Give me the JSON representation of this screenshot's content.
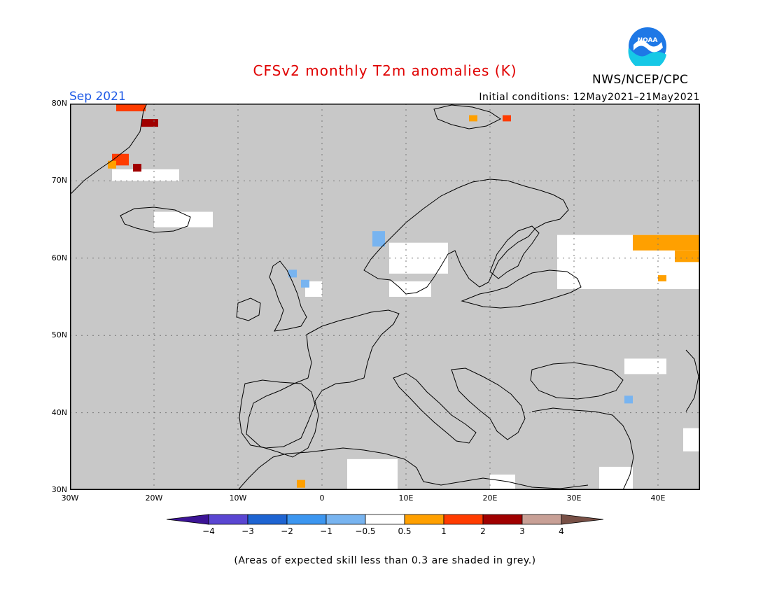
{
  "header": {
    "title": "CFSv2 monthly T2m anomalies (K)",
    "organization": "NWS/NCEP/CPC",
    "logo_text": "NOAA",
    "period": "Sep 2021",
    "initial_conditions": "Initial conditions: 12May2021–21May2021"
  },
  "colors": {
    "title": "#e00000",
    "period": "#1e5ae6",
    "skill_grey": "#c8c8c8",
    "neutral": "#ffffff"
  },
  "map": {
    "projection": "lat-lon",
    "lon_range": [
      -30,
      45
    ],
    "lat_range": [
      30,
      80
    ],
    "lat_ticks": [
      {
        "value": 80,
        "label": "80N"
      },
      {
        "value": 70,
        "label": "70N"
      },
      {
        "value": 60,
        "label": "60N"
      },
      {
        "value": 50,
        "label": "50N"
      },
      {
        "value": 40,
        "label": "40N"
      },
      {
        "value": 30,
        "label": "30N"
      }
    ],
    "lon_ticks": [
      {
        "value": -30,
        "label": "30W"
      },
      {
        "value": -20,
        "label": "20W"
      },
      {
        "value": -10,
        "label": "10W"
      },
      {
        "value": 0,
        "label": "0"
      },
      {
        "value": 10,
        "label": "10E"
      },
      {
        "value": 20,
        "label": "20E"
      },
      {
        "value": 30,
        "label": "30E"
      },
      {
        "value": 40,
        "label": "40E"
      }
    ]
  },
  "colorbar": {
    "levels": [
      {
        "value": -4,
        "label": "−4"
      },
      {
        "value": -3,
        "label": "−3"
      },
      {
        "value": -2,
        "label": "−2"
      },
      {
        "value": -1,
        "label": "−1"
      },
      {
        "value": -0.5,
        "label": "−0.5"
      },
      {
        "value": 0.5,
        "label": "0.5"
      },
      {
        "value": 1,
        "label": "1"
      },
      {
        "value": 2,
        "label": "2"
      },
      {
        "value": 3,
        "label": "3"
      },
      {
        "value": 4,
        "label": "4"
      }
    ],
    "colors": [
      "#3c1496",
      "#5a46d2",
      "#1e64d2",
      "#3c96f0",
      "#78b4f0",
      "#ffffff",
      "#ffa000",
      "#ff3c00",
      "#a00000",
      "#c8a096",
      "#785046"
    ]
  },
  "footnote": "(Areas of expected skill less than 0.3 are shaded in grey.)",
  "anomaly_cells": [
    {
      "lon": -24.5,
      "lat": 79.0,
      "dlon": 3.5,
      "dlat": 2.5,
      "color": "#ff3c00"
    },
    {
      "lon": -21.5,
      "lat": 77.0,
      "dlon": 2.0,
      "dlat": 1.0,
      "color": "#a00000"
    },
    {
      "lon": -25.0,
      "lat": 72.0,
      "dlon": 2.0,
      "dlat": 1.5,
      "color": "#ff3c00"
    },
    {
      "lon": -25.5,
      "lat": 71.6,
      "dlon": 1.0,
      "dlat": 1.0,
      "color": "#ffa000"
    },
    {
      "lon": -22.5,
      "lat": 71.2,
      "dlon": 1.0,
      "dlat": 1.0,
      "color": "#a00000"
    },
    {
      "lon": 17.5,
      "lat": 77.7,
      "dlon": 1.0,
      "dlat": 0.8,
      "color": "#ffa000"
    },
    {
      "lon": 21.5,
      "lat": 77.7,
      "dlon": 1.0,
      "dlat": 0.8,
      "color": "#ff3c00"
    },
    {
      "lon": 37.0,
      "lat": 61.0,
      "dlon": 8.0,
      "dlat": 2.0,
      "color": "#ffa000"
    },
    {
      "lon": 42.0,
      "lat": 59.5,
      "dlon": 3.0,
      "dlat": 1.5,
      "color": "#ffa000"
    },
    {
      "lon": 40.0,
      "lat": 57.0,
      "dlon": 1.0,
      "dlat": 0.8,
      "color": "#ffa000"
    },
    {
      "lon": -3.0,
      "lat": 30.3,
      "dlon": 1.0,
      "dlat": 1.0,
      "color": "#ffa000"
    },
    {
      "lon": 36.0,
      "lat": 41.2,
      "dlon": 1.0,
      "dlat": 1.0,
      "color": "#78b4f0"
    },
    {
      "lon": -4.0,
      "lat": 57.5,
      "dlon": 1.0,
      "dlat": 1.0,
      "color": "#78b4f0"
    },
    {
      "lon": -2.5,
      "lat": 56.2,
      "dlon": 1.0,
      "dlat": 1.0,
      "color": "#78b4f0"
    },
    {
      "lon": 6.0,
      "lat": 61.5,
      "dlon": 1.5,
      "dlat": 2.0,
      "color": "#78b4f0"
    }
  ],
  "neutral_cells": [
    {
      "lon": -25,
      "lat": 70,
      "dlon": 8,
      "dlat": 1.5
    },
    {
      "lon": -20,
      "lat": 64,
      "dlon": 7,
      "dlat": 2
    },
    {
      "lon": 28,
      "lat": 56,
      "dlon": 17,
      "dlat": 7
    },
    {
      "lon": 8,
      "lat": 58,
      "dlon": 7,
      "dlat": 4
    },
    {
      "lon": 3,
      "lat": 30,
      "dlon": 6,
      "dlat": 4
    },
    {
      "lon": 20,
      "lat": 30,
      "dlon": 3,
      "dlat": 2
    },
    {
      "lon": 33,
      "lat": 30,
      "dlon": 4,
      "dlat": 3
    },
    {
      "lon": 43,
      "lat": 35,
      "dlon": 2,
      "dlat": 3
    },
    {
      "lon": 36,
      "lat": 45,
      "dlon": 5,
      "dlat": 2
    },
    {
      "lon": -2,
      "lat": 55,
      "dlon": 2,
      "dlat": 2
    },
    {
      "lon": 8,
      "lat": 55,
      "dlon": 5,
      "dlat": 2
    }
  ]
}
